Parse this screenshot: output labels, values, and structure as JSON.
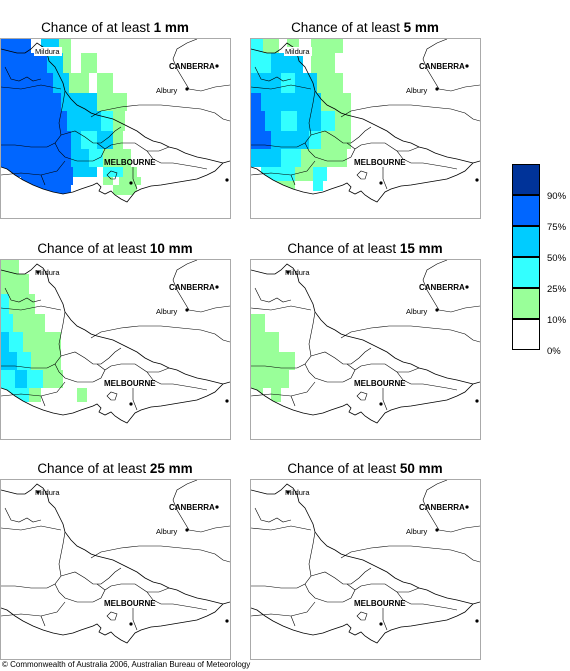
{
  "panels": [
    {
      "prefix": "Chance of at least ",
      "amount": "1 mm",
      "level": 0
    },
    {
      "prefix": "Chance of at least ",
      "amount": "5 mm",
      "level": 1
    },
    {
      "prefix": "Chance of at least ",
      "amount": "10 mm",
      "level": 2
    },
    {
      "prefix": "Chance of at least ",
      "amount": "15 mm",
      "level": 3
    },
    {
      "prefix": "Chance of at least ",
      "amount": "25 mm",
      "level": 4
    },
    {
      "prefix": "Chance of at least ",
      "amount": "50 mm",
      "level": 5
    }
  ],
  "places": {
    "mildura": "Mildura",
    "canberra": "CANBERRA",
    "albury": "Albury",
    "melbourne": "MELBOURNE"
  },
  "legend": {
    "bands": [
      {
        "color": "#003399"
      },
      {
        "color": "#0066ff"
      },
      {
        "color": "#00ccff"
      },
      {
        "color": "#33ffff"
      },
      {
        "color": "#99ff99"
      },
      {
        "color": "#ffffff"
      }
    ],
    "ticks": [
      "90%",
      "75%",
      "50%",
      "25%",
      "10%",
      "0%"
    ]
  },
  "copyright": "© Commonwealth of Australia 2006, Australian Bureau of Meteorology"
}
